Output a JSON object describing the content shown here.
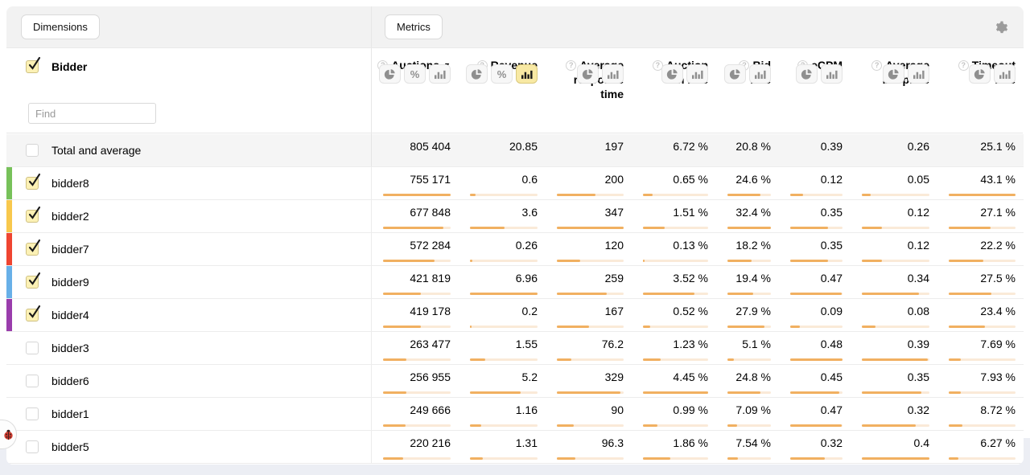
{
  "topbar": {
    "dimensions_label": "Dimensions",
    "metrics_label": "Metrics"
  },
  "icons": {
    "help": "?",
    "sort_desc": "▼",
    "percent": "%"
  },
  "dimension": {
    "name": "Bidder",
    "checked": true,
    "find_placeholder": "Find"
  },
  "columns": [
    {
      "label": "Auctions",
      "help_icon": true,
      "sorted": "desc",
      "toggles": [
        "pie",
        "percent",
        "bars"
      ],
      "active_toggle": null
    },
    {
      "label": "Revenue",
      "help_icon": true,
      "sorted": null,
      "toggles": [
        "pie",
        "percent",
        "bars"
      ],
      "active_toggle": "bars"
    },
    {
      "label": "Average response time",
      "help_icon": true,
      "sorted": null,
      "toggles": [
        "pie",
        "bars"
      ],
      "active_toggle": null
    },
    {
      "label": "Auction win rate",
      "help_icon": true,
      "sorted": null,
      "toggles": [
        "pie",
        "bars"
      ],
      "active_toggle": null
    },
    {
      "label": "Bid rate",
      "help_icon": true,
      "sorted": null,
      "toggles": [
        "pie",
        "bars"
      ],
      "active_toggle": null
    },
    {
      "label": "eCPM",
      "help_icon": true,
      "sorted": null,
      "toggles": [
        "pie",
        "bars"
      ],
      "active_toggle": null
    },
    {
      "label": "Average bid price",
      "help_icon": true,
      "sorted": null,
      "toggles": [
        "pie",
        "bars"
      ],
      "active_toggle": null
    },
    {
      "label": "Timeout rate",
      "help_icon": true,
      "sorted": null,
      "toggles": [
        "pie",
        "bars"
      ],
      "active_toggle": null
    }
  ],
  "total_row": {
    "label": "Total and average",
    "checked": false,
    "values": [
      "805 404",
      "20.85",
      "197",
      "6.72 %",
      "20.8 %",
      "0.39",
      "0.26",
      "25.1 %"
    ]
  },
  "rows": [
    {
      "label": "bidder8",
      "checked": true,
      "strip_color": "#77c15a",
      "values": [
        "755 171",
        "0.6",
        "200",
        "0.65 %",
        "24.6 %",
        "0.12",
        "0.05",
        "43.1 %"
      ]
    },
    {
      "label": "bidder2",
      "checked": true,
      "strip_color": "#f8c84d",
      "values": [
        "677 848",
        "3.6",
        "347",
        "1.51 %",
        "32.4 %",
        "0.35",
        "0.12",
        "27.1 %"
      ]
    },
    {
      "label": "bidder7",
      "checked": true,
      "strip_color": "#ef4531",
      "values": [
        "572 284",
        "0.26",
        "120",
        "0.13 %",
        "18.2 %",
        "0.35",
        "0.12",
        "22.2 %"
      ]
    },
    {
      "label": "bidder9",
      "checked": true,
      "strip_color": "#68b0e8",
      "values": [
        "421 819",
        "6.96",
        "259",
        "3.52 %",
        "19.4 %",
        "0.47",
        "0.34",
        "27.5 %"
      ]
    },
    {
      "label": "bidder4",
      "checked": true,
      "strip_color": "#9a3dac",
      "values": [
        "419 178",
        "0.2",
        "167",
        "0.52 %",
        "27.9 %",
        "0.09",
        "0.08",
        "23.4 %"
      ]
    },
    {
      "label": "bidder3",
      "checked": false,
      "strip_color": null,
      "values": [
        "263 477",
        "1.55",
        "76.2",
        "1.23 %",
        "5.1 %",
        "0.48",
        "0.39",
        "7.69 %"
      ]
    },
    {
      "label": "bidder6",
      "checked": false,
      "strip_color": null,
      "values": [
        "256 955",
        "5.2",
        "329",
        "4.45 %",
        "24.8 %",
        "0.45",
        "0.35",
        "7.93 %"
      ]
    },
    {
      "label": "bidder1",
      "checked": false,
      "strip_color": null,
      "values": [
        "249 666",
        "1.16",
        "90",
        "0.99 %",
        "7.09 %",
        "0.47",
        "0.32",
        "8.72 %"
      ]
    },
    {
      "label": "bidder5",
      "checked": false,
      "strip_color": null,
      "values": [
        "220 216",
        "1.31",
        "96.3",
        "1.86 %",
        "7.54 %",
        "0.32",
        "0.4",
        "6.27 %"
      ]
    }
  ],
  "colors": {
    "bar_fill": "#f1b061",
    "bar_track": "#faead8",
    "active_toggle_bg": "#f8e9a4",
    "checked_checkbox_bg": "#fcf1b5",
    "topbar_bg": "#f2f2f2",
    "total_row_bg": "#f5f5f5"
  }
}
